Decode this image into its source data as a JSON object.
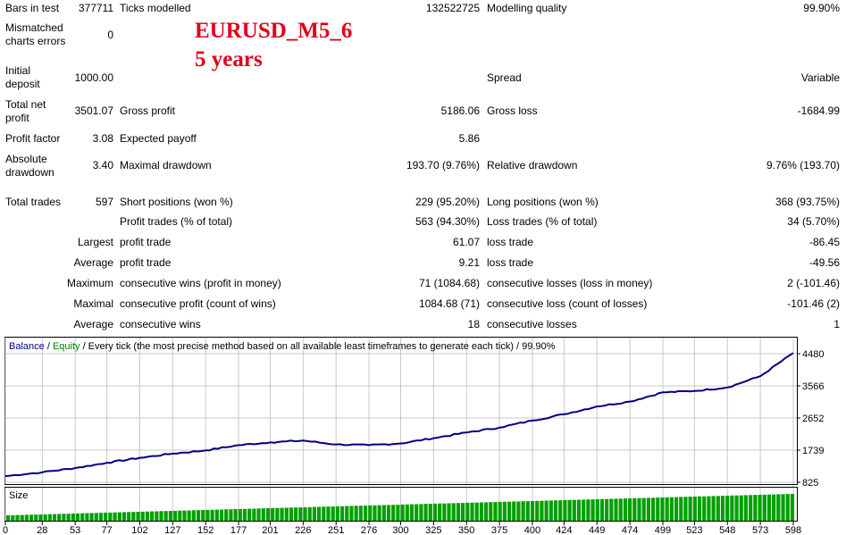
{
  "overlay": {
    "title": "EURUSD_M5_6",
    "subtitle": "5 years"
  },
  "report": {
    "bars_label": "Bars in test",
    "bars_value": "377711",
    "ticks_label": "Ticks modelled",
    "ticks_value": "132522725",
    "quality_label": "Modelling quality",
    "quality_value": "99.90%",
    "mismatch_label": "Mismatched charts errors",
    "mismatch_value": "0",
    "deposit_label": "Initial deposit",
    "deposit_value": "1000.00",
    "spread_label": "Spread",
    "spread_value": "Variable",
    "netprofit_label": "Total net profit",
    "netprofit_value": "3501.07",
    "grossprofit_label": "Gross profit",
    "grossprofit_value": "5186.06",
    "grossloss_label": "Gross loss",
    "grossloss_value": "-1684.99",
    "pf_label": "Profit factor",
    "pf_value": "3.08",
    "payoff_label": "Expected payoff",
    "payoff_value": "5.86",
    "absdd_label": "Absolute drawdown",
    "absdd_value": "3.40",
    "maxdd_label": "Maximal drawdown",
    "maxdd_value": "193.70 (9.76%)",
    "reldd_label": "Relative drawdown",
    "reldd_value": "9.76% (193.70)",
    "trades_label": "Total trades",
    "trades_value": "597",
    "short_label": "Short positions (won %)",
    "short_value": "229 (95.20%)",
    "long_label": "Long positions (won %)",
    "long_value": "368 (93.75%)",
    "ptrades_label": "Profit trades (% of total)",
    "ptrades_value": "563 (94.30%)",
    "ltrades_label": "Loss trades (% of total)",
    "ltrades_value": "34 (5.70%)",
    "largest_label": "Largest",
    "largest_profit_label": "profit trade",
    "largest_profit_value": "61.07",
    "largest_loss_label": "loss trade",
    "largest_loss_value": "-86.45",
    "average_label": "Average",
    "average_profit_label": "profit trade",
    "average_profit_value": "9.21",
    "average_loss_label": "loss trade",
    "average_loss_value": "-49.56",
    "maximum_label": "Maximum",
    "max_wins_label": "consecutive wins (profit in money)",
    "max_wins_value": "71 (1084.68)",
    "max_losses_label": "consecutive losses (loss in money)",
    "max_losses_value": "2 (-101.46)",
    "maximal_label": "Maximal",
    "maximal_profit_label": "consecutive profit (count of wins)",
    "maximal_profit_value": "1084.68 (71)",
    "maximal_loss_label": "consecutive loss (count of losses)",
    "maximal_loss_value": "-101.46 (2)",
    "avgc_label": "Average",
    "avg_wins_label": "consecutive wins",
    "avg_wins_value": "18",
    "avg_losses_label": "consecutive losses",
    "avg_losses_value": "1"
  },
  "chart": {
    "legend_balance": "Balance",
    "legend_sep": " / ",
    "legend_equity": "Equity",
    "legend_desc": " / Every tick (the most precise method based on all available least timeframes to generate each tick) / 99.90%",
    "size_label": "Size",
    "colors": {
      "balance": "#000080",
      "equity": "#008000",
      "size": "#00a000",
      "grid": "#c8c8c8"
    }
  },
  "chart_data": {
    "type": "line",
    "series": [
      {
        "name": "Balance",
        "x": [
          0,
          28,
          53,
          77,
          102,
          127,
          152,
          177,
          201,
          226,
          251,
          276,
          300,
          325,
          350,
          375,
          400,
          424,
          449,
          474,
          499,
          523,
          548,
          573,
          598
        ],
        "values": [
          1000,
          1110,
          1230,
          1380,
          1520,
          1640,
          1730,
          1880,
          1960,
          2010,
          1900,
          1880,
          1930,
          2080,
          2240,
          2380,
          2580,
          2760,
          2980,
          3120,
          3380,
          3420,
          3520,
          3840,
          4501
        ]
      }
    ],
    "y_ticks": [
      "4480",
      "3566",
      "2652",
      "1739",
      "825"
    ],
    "ylim": [
      825,
      4480
    ],
    "x_ticks": [
      "0",
      "28",
      "53",
      "77",
      "102",
      "127",
      "152",
      "177",
      "201",
      "226",
      "251",
      "276",
      "300",
      "325",
      "350",
      "375",
      "400",
      "424",
      "449",
      "474",
      "499",
      "523",
      "548",
      "573",
      "598"
    ]
  }
}
